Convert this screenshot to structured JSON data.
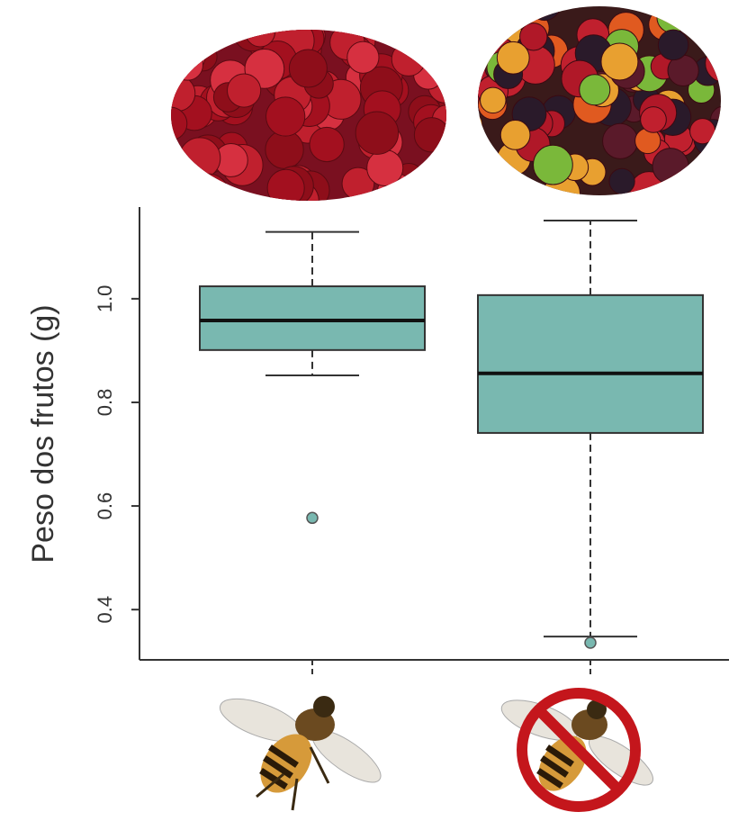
{
  "chart_data": {
    "type": "box",
    "ylabel": "Peso dos frutos (g)",
    "categories": [
      null,
      null
    ],
    "color": "#79b8b0",
    "boxes": [
      {
        "min": 0.852,
        "q1": 0.901,
        "median": 0.958,
        "q3": 1.024,
        "max": 1.129,
        "outliers": [
          0.577
        ]
      },
      {
        "min": 0.348,
        "q1": 0.741,
        "median": 0.856,
        "q3": 1.007,
        "max": 1.151,
        "outliers": [
          0.336
        ]
      }
    ],
    "ylim": [
      0.303,
      1.177
    ],
    "yticks": [
      0.4,
      0.6,
      0.8,
      {
        "value": 1,
        "label": "1.0"
      }
    ]
  }
}
